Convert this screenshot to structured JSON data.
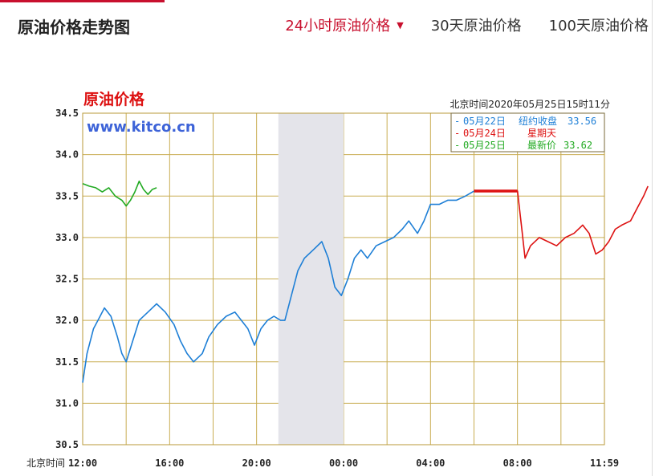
{
  "page": {
    "title": "原油价格走势图"
  },
  "tabs": [
    {
      "label": "24小时原油价格",
      "active": true
    },
    {
      "label": "30天原油价格",
      "active": false
    },
    {
      "label": "100天原油价格",
      "active": false
    }
  ],
  "chart_data": {
    "type": "line",
    "title": "原油价格",
    "watermark": "www.kitco.cn",
    "timestamp": "北京时间2020年05月25日15时11分",
    "xlabel": "北京时间",
    "x_ticks": [
      "12:00",
      "16:00",
      "20:00",
      "00:00",
      "04:00",
      "08:00",
      "11:59"
    ],
    "ylim": [
      30.5,
      34.5
    ],
    "y_ticks": [
      "34.5",
      "34.0",
      "33.5",
      "33.0",
      "32.5",
      "32.0",
      "31.5",
      "31.0",
      "30.5"
    ],
    "shaded_region": [
      "21:00",
      "00:00"
    ],
    "legend": [
      {
        "date": "05月22日",
        "label": "纽约收盘",
        "value": "33.56",
        "color": "#1e7fd6"
      },
      {
        "date": "05月24日",
        "label": "星期天",
        "value": "",
        "color": "#dd1111"
      },
      {
        "date": "05月25日",
        "label": "最新价",
        "value": "33.62",
        "color": "#22aa22"
      }
    ],
    "series": [
      {
        "color": "#1e7fd6",
        "values": [
          [
            0,
            31.25
          ],
          [
            0.2,
            31.6
          ],
          [
            0.5,
            31.9
          ],
          [
            0.8,
            32.05
          ],
          [
            1.0,
            32.15
          ],
          [
            1.3,
            32.05
          ],
          [
            1.6,
            31.8
          ],
          [
            1.8,
            31.6
          ],
          [
            2.0,
            31.5
          ],
          [
            2.3,
            31.75
          ],
          [
            2.6,
            32.0
          ],
          [
            3.0,
            32.1
          ],
          [
            3.4,
            32.2
          ],
          [
            3.8,
            32.1
          ],
          [
            4.2,
            31.95
          ],
          [
            4.5,
            31.75
          ],
          [
            4.8,
            31.6
          ],
          [
            5.1,
            31.5
          ],
          [
            5.5,
            31.6
          ],
          [
            5.8,
            31.8
          ],
          [
            6.2,
            31.95
          ],
          [
            6.6,
            32.05
          ],
          [
            7.0,
            32.1
          ],
          [
            7.3,
            32.0
          ],
          [
            7.6,
            31.9
          ],
          [
            7.9,
            31.7
          ],
          [
            8.2,
            31.9
          ],
          [
            8.5,
            32.0
          ],
          [
            8.8,
            32.05
          ],
          [
            9.1,
            32.0
          ],
          [
            9.3,
            32.0
          ],
          [
            9.6,
            32.3
          ],
          [
            9.9,
            32.6
          ],
          [
            10.2,
            32.75
          ],
          [
            10.6,
            32.85
          ],
          [
            11.0,
            32.95
          ],
          [
            11.3,
            32.75
          ],
          [
            11.6,
            32.4
          ],
          [
            11.9,
            32.3
          ],
          [
            12.2,
            32.5
          ],
          [
            12.5,
            32.75
          ],
          [
            12.8,
            32.85
          ],
          [
            13.1,
            32.75
          ],
          [
            13.5,
            32.9
          ],
          [
            13.9,
            32.95
          ],
          [
            14.3,
            33.0
          ],
          [
            14.7,
            33.1
          ],
          [
            15.0,
            33.2
          ],
          [
            15.4,
            33.05
          ],
          [
            15.7,
            33.2
          ],
          [
            16.0,
            33.4
          ],
          [
            16.4,
            33.4
          ],
          [
            16.8,
            33.45
          ],
          [
            17.2,
            33.45
          ],
          [
            17.6,
            33.5
          ],
          [
            18.0,
            33.56
          ]
        ]
      },
      {
        "color": "#dd1111",
        "values": [
          [
            18.0,
            33.56
          ],
          [
            20.0,
            33.56
          ],
          [
            20.05,
            33.45
          ],
          [
            20.2,
            33.1
          ],
          [
            20.35,
            32.75
          ],
          [
            20.6,
            32.9
          ],
          [
            21.0,
            33.0
          ],
          [
            21.4,
            32.95
          ],
          [
            21.8,
            32.9
          ],
          [
            22.2,
            33.0
          ],
          [
            22.6,
            33.05
          ],
          [
            23.0,
            33.15
          ],
          [
            23.3,
            33.05
          ],
          [
            23.6,
            32.8
          ],
          [
            23.9,
            32.85
          ],
          [
            24.2,
            32.95
          ],
          [
            24.5,
            33.1
          ],
          [
            24.8,
            33.15
          ],
          [
            25.2,
            33.2
          ],
          [
            25.5,
            33.35
          ],
          [
            25.8,
            33.5
          ],
          [
            26.0,
            33.62
          ]
        ]
      },
      {
        "color": "#22aa22",
        "values": [
          [
            0,
            33.65
          ],
          [
            0.3,
            33.62
          ],
          [
            0.6,
            33.6
          ],
          [
            0.9,
            33.55
          ],
          [
            1.2,
            33.6
          ],
          [
            1.5,
            33.5
          ],
          [
            1.8,
            33.45
          ],
          [
            2.0,
            33.38
          ],
          [
            2.2,
            33.45
          ],
          [
            2.4,
            33.55
          ],
          [
            2.6,
            33.68
          ],
          [
            2.8,
            33.58
          ],
          [
            3.0,
            33.52
          ],
          [
            3.2,
            33.58
          ],
          [
            3.4,
            33.6
          ]
        ]
      }
    ]
  }
}
